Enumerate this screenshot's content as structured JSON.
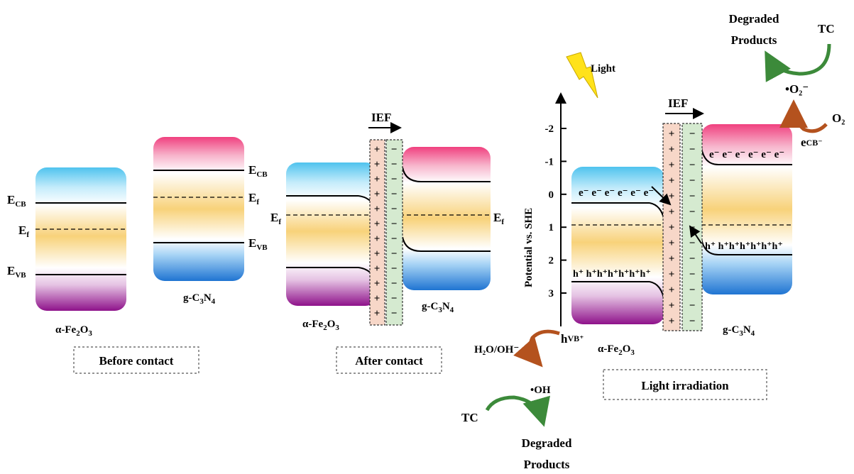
{
  "colors": {
    "cb_pink": "#f0407f",
    "cb_cyan": "#4fc3ee",
    "vb_blue": "#1f74d2",
    "vb_purple": "#8e128a",
    "mid_yellow": "#f8d27a",
    "positive_layer": "#f7d7c8",
    "negative_layer": "#d5ead0",
    "arrow_green": "#3c8a3a",
    "arrow_brown": "#b4521e",
    "bolt_yellow": "#ffe21a"
  },
  "panel1": {
    "label_ecb_main": "E",
    "label_ecb_sub": "CB",
    "label_ef_main": "E",
    "label_ef_sub": "f",
    "label_evb_main": "E",
    "label_evb_sub": "VB",
    "gc_ecb_main": "E",
    "gc_ecb_sub": "CB",
    "gc_ef_main": "E",
    "gc_ef_sub": "f",
    "gc_evb_main": "E",
    "gc_evb_sub": "VB",
    "fe_name_pre": "α-Fe",
    "fe_sub1": "2",
    "fe_mid": "O",
    "fe_sub2": "3",
    "gc_name_pre": "g-C",
    "gc_sub1": "3",
    "gc_mid": "N",
    "gc_sub2": "4",
    "caption": "Before contact"
  },
  "panel2": {
    "ief": "IEF",
    "left_ef_main": "E",
    "left_ef_sub": "f",
    "right_ef_main": "E",
    "right_ef_sub": "f",
    "plus": "+",
    "minus": "−",
    "fe_name_pre": "α-Fe",
    "fe_sub1": "2",
    "fe_mid": "O",
    "fe_sub2": "3",
    "gc_name_pre": "g-C",
    "gc_sub1": "3",
    "gc_mid": "N",
    "gc_sub2": "4",
    "caption": "After contact"
  },
  "panel3": {
    "light": "Light",
    "ief": "IEF",
    "axis_label": "Potential vs. SHE",
    "ticks": [
      "-2",
      "-1",
      "0",
      "1",
      "2",
      "3"
    ],
    "electrons_fe": "e⁻ e⁻ e⁻ e⁻ e⁻ e⁻",
    "electrons_gc": "e⁻ e⁻ e⁻ e⁻ e⁻ e⁻",
    "holes_fe": "h⁺ h⁺h⁺h⁺h⁺h⁺h⁺",
    "holes_gc": "h⁺ h⁺h⁺h⁺h⁺h⁺h⁺",
    "top_products_1": "Degraded",
    "top_products_2": "Products",
    "top_tc": "TC",
    "superoxide": "•O₂⁻",
    "o2": "O₂",
    "ecb_main": "e",
    "ecb_sub": "CB⁻",
    "hvb_main": "h",
    "hvb_sub": "VB⁺",
    "h2o": "H₂O/OH⁻",
    "oh": "•OH",
    "bottom_tc": "TC",
    "bottom_products_1": "Degraded",
    "bottom_products_2": "Products",
    "fe_name_pre": "α-Fe",
    "fe_sub1": "2",
    "fe_mid": "O",
    "fe_sub2": "3",
    "gc_name_pre": "g-C",
    "gc_sub1": "3",
    "gc_mid": "N",
    "gc_sub2": "4",
    "caption": "Light irradiation"
  }
}
